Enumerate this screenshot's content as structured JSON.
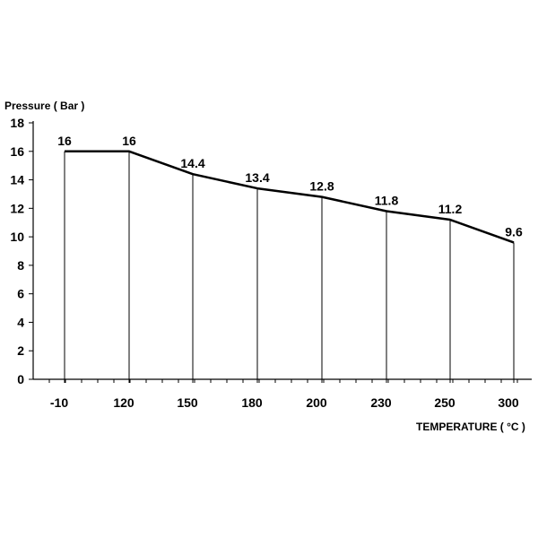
{
  "chart_data": {
    "type": "line",
    "title": "",
    "ylabel": "Pressure ( Bar )",
    "xlabel": "TEMPERATURE ( °C )",
    "categories": [
      "-10",
      "120",
      "150",
      "180",
      "200",
      "230",
      "250",
      "300"
    ],
    "values": [
      16,
      16,
      14.4,
      13.4,
      12.8,
      11.8,
      11.2,
      9.6
    ],
    "value_labels": [
      "16",
      "16",
      "14.4",
      "13.4",
      "12.8",
      "11.8",
      "11.2",
      "9.6"
    ],
    "ylim": [
      0,
      18
    ],
    "yticks": [
      "0",
      "2",
      "4",
      "6",
      "8",
      "10",
      "12",
      "14",
      "16",
      "18"
    ],
    "grid": "vertical drop lines at data points",
    "legend": "none",
    "colors": {
      "line": "#000000",
      "axis": "#000000",
      "dropline": "#000000"
    }
  }
}
